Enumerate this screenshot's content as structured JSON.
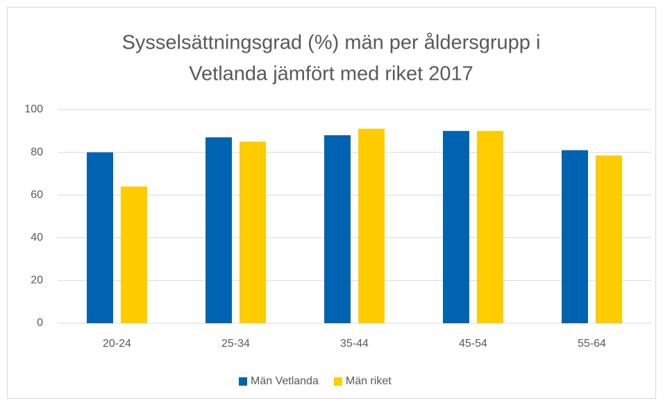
{
  "chart_data": {
    "type": "bar",
    "title": [
      "Sysselsättningsgrad (%) män per åldersgrupp i",
      "Vetlanda jämfört med riket 2017"
    ],
    "categories": [
      "20-24",
      "25-34",
      "35-44",
      "45-54",
      "55-64"
    ],
    "series": [
      {
        "name": "Män Vetlanda",
        "color": "#0063b1",
        "values": [
          80,
          87,
          88,
          90,
          81
        ]
      },
      {
        "name": "Män riket",
        "color": "#ffcc00",
        "values": [
          64,
          85,
          91,
          90,
          78.5
        ]
      }
    ],
    "ylim": [
      0,
      100
    ],
    "yticks": [
      0,
      20,
      40,
      60,
      80,
      100
    ],
    "grid": true,
    "legend": "bottom"
  }
}
